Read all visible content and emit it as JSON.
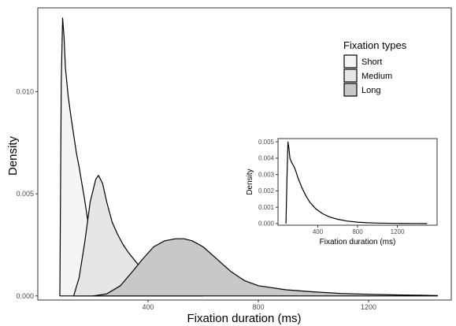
{
  "chart_data": [
    {
      "type": "area",
      "xlabel": "Fixation duration (ms)",
      "ylabel": "Density",
      "xlim": [
        0,
        1500
      ],
      "ylim": [
        -0.0002,
        0.0141
      ],
      "x_ticks": [
        400,
        800,
        1200
      ],
      "y_ticks": [
        0.0,
        0.005,
        0.01
      ],
      "y_tick_labels": [
        "0.000",
        "0.005",
        "0.010"
      ],
      "grid": false,
      "legend": {
        "title": "Fixation types",
        "placement": "top-right",
        "entries": [
          "Short",
          "Medium",
          "Long"
        ]
      },
      "series": [
        {
          "name": "Short",
          "fill": "#f5f5f5",
          "x": [
            80,
            82,
            85,
            90,
            95,
            100,
            110,
            120,
            130,
            140,
            150,
            160,
            170,
            180,
            190,
            200,
            210,
            220,
            230,
            240
          ],
          "y": [
            0,
            0.0042,
            0.0105,
            0.0136,
            0.0127,
            0.0112,
            0.0098,
            0.0088,
            0.0079,
            0.007,
            0.0063,
            0.0055,
            0.0047,
            0.0038,
            0.003,
            0.0021,
            0.0013,
            0.0007,
            0.0003,
            0
          ]
        },
        {
          "name": "Medium",
          "fill": "#e6e6e6",
          "x": [
            130,
            150,
            170,
            190,
            210,
            220,
            235,
            250,
            270,
            290,
            310,
            330,
            360,
            390,
            420,
            450,
            500,
            550,
            600
          ],
          "y": [
            0,
            0.0009,
            0.0026,
            0.0046,
            0.0057,
            0.0059,
            0.0055,
            0.0046,
            0.0036,
            0.003,
            0.0025,
            0.0021,
            0.0016,
            0.0012,
            0.0008,
            0.0005,
            0.0002,
            0.0001,
            0
          ]
        },
        {
          "name": "Long",
          "fill": "#c8c8c8",
          "x": [
            200,
            250,
            300,
            350,
            380,
            420,
            460,
            500,
            530,
            560,
            600,
            650,
            700,
            750,
            800,
            900,
            1000,
            1100,
            1200,
            1300,
            1400,
            1450
          ],
          "y": [
            0,
            0.0001,
            0.0005,
            0.0013,
            0.0018,
            0.0024,
            0.0027,
            0.0028,
            0.0028,
            0.0027,
            0.0024,
            0.0018,
            0.0012,
            0.00075,
            0.0005,
            0.0003,
            0.0002,
            0.00012,
            8e-05,
            5e-05,
            3e-05,
            2e-05
          ]
        }
      ]
    },
    {
      "type": "line",
      "xlabel": "Fixation duration (ms)",
      "ylabel": "Density",
      "xlim": [
        0,
        1600
      ],
      "ylim": [
        -0.0001,
        0.0052
      ],
      "x_ticks": [
        400,
        800,
        1200
      ],
      "y_ticks": [
        0.0,
        0.001,
        0.002,
        0.003,
        0.004,
        0.005
      ],
      "y_tick_labels": [
        "0.000",
        "0.001",
        "0.002",
        "0.003",
        "0.004",
        "0.005"
      ],
      "grid": false,
      "series": [
        {
          "x": [
            80,
            90,
            100,
            110,
            120,
            140,
            160,
            180,
            200,
            240,
            280,
            320,
            380,
            450,
            520,
            600,
            700,
            800,
            900,
            1000,
            1200,
            1400,
            1500
          ],
          "y": [
            0,
            0.0028,
            0.005,
            0.0046,
            0.004,
            0.0037,
            0.0035,
            0.0032,
            0.0028,
            0.0022,
            0.0017,
            0.0013,
            0.0009,
            0.0006,
            0.0004,
            0.00026,
            0.00015,
            9e-05,
            5e-05,
            3e-05,
            1e-05,
            5e-06,
            0
          ]
        }
      ]
    }
  ]
}
